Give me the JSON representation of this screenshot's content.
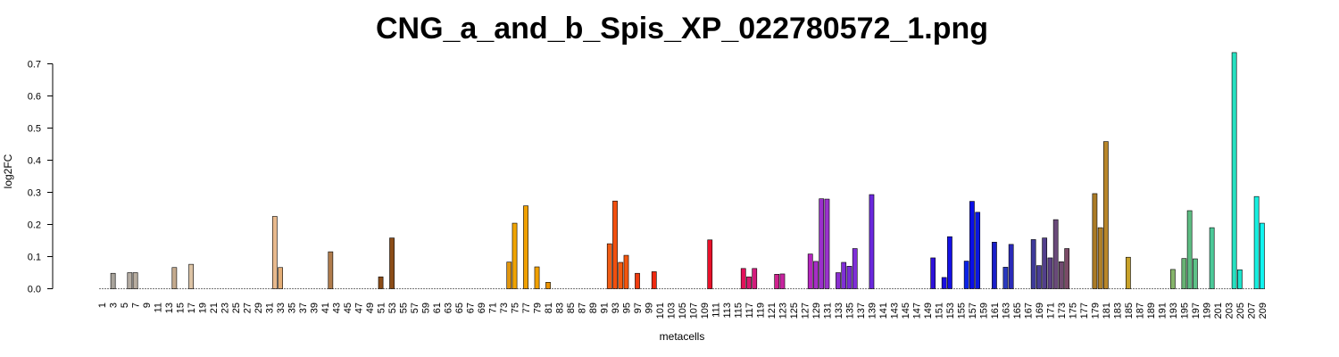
{
  "chart_data": {
    "type": "bar",
    "title": "CNG_a_and_b_Spis_XP_022780572_1.png",
    "xlabel": "metacells",
    "ylabel": "log2FC",
    "ylim": [
      0,
      0.7
    ],
    "yticks": [
      "0.0",
      "0.1",
      "0.2",
      "0.3",
      "0.4",
      "0.5",
      "0.6",
      "0.7"
    ],
    "n_categories": 209,
    "xtick_labels": [
      "1",
      "3",
      "5",
      "7",
      "9",
      "11",
      "13",
      "15",
      "17",
      "19",
      "21",
      "23",
      "25",
      "27",
      "29",
      "31",
      "33",
      "35",
      "37",
      "39",
      "41",
      "43",
      "45",
      "47",
      "49",
      "51",
      "53",
      "55",
      "57",
      "59",
      "61",
      "63",
      "65",
      "67",
      "69",
      "71",
      "73",
      "75",
      "77",
      "79",
      "81",
      "83",
      "85",
      "87",
      "89",
      "91",
      "93",
      "95",
      "97",
      "99",
      "101",
      "103",
      "105",
      "107",
      "109",
      "111",
      "113",
      "115",
      "117",
      "119",
      "121",
      "123",
      "125",
      "127",
      "129",
      "131",
      "133",
      "135",
      "137",
      "139",
      "141",
      "143",
      "145",
      "147",
      "149",
      "151",
      "153",
      "155",
      "157",
      "159",
      "161",
      "163",
      "165",
      "167",
      "169",
      "171",
      "173",
      "175",
      "177",
      "179",
      "181",
      "183",
      "185",
      "187",
      "189",
      "191",
      "193",
      "195",
      "197",
      "199",
      "201",
      "203",
      "205",
      "207",
      "209"
    ],
    "bars": [
      {
        "x": 3,
        "value": 0.048,
        "color": "#a8a39b"
      },
      {
        "x": 6,
        "value": 0.05,
        "color": "#b5ada3"
      },
      {
        "x": 7,
        "value": 0.05,
        "color": "#b8ada0"
      },
      {
        "x": 14,
        "value": 0.066,
        "color": "#c4aa8e"
      },
      {
        "x": 17,
        "value": 0.076,
        "color": "#dcc3a5"
      },
      {
        "x": 32,
        "value": 0.225,
        "color": "#e8b98d"
      },
      {
        "x": 33,
        "value": 0.066,
        "color": "#e3ad76"
      },
      {
        "x": 42,
        "value": 0.115,
        "color": "#b07c4c"
      },
      {
        "x": 51,
        "value": 0.037,
        "color": "#8b4c17"
      },
      {
        "x": 53,
        "value": 0.158,
        "color": "#8b4c17"
      },
      {
        "x": 74,
        "value": 0.083,
        "color": "#e0950e"
      },
      {
        "x": 75,
        "value": 0.204,
        "color": "#f0a400"
      },
      {
        "x": 77,
        "value": 0.258,
        "color": "#f0a000"
      },
      {
        "x": 79,
        "value": 0.068,
        "color": "#f0a000"
      },
      {
        "x": 81,
        "value": 0.02,
        "color": "#eb9200"
      },
      {
        "x": 92,
        "value": 0.14,
        "color": "#f25c14"
      },
      {
        "x": 93,
        "value": 0.273,
        "color": "#f24f0e"
      },
      {
        "x": 94,
        "value": 0.082,
        "color": "#f45a0e"
      },
      {
        "x": 95,
        "value": 0.104,
        "color": "#f2560e"
      },
      {
        "x": 97,
        "value": 0.048,
        "color": "#f03c0f"
      },
      {
        "x": 100,
        "value": 0.053,
        "color": "#ee2a10"
      },
      {
        "x": 110,
        "value": 0.152,
        "color": "#e8102a"
      },
      {
        "x": 116,
        "value": 0.063,
        "color": "#e3115a"
      },
      {
        "x": 117,
        "value": 0.037,
        "color": "#d7186e"
      },
      {
        "x": 118,
        "value": 0.063,
        "color": "#d41c7c"
      },
      {
        "x": 122,
        "value": 0.045,
        "color": "#cf238e"
      },
      {
        "x": 123,
        "value": 0.046,
        "color": "#c824a0"
      },
      {
        "x": 128,
        "value": 0.108,
        "color": "#b526be"
      },
      {
        "x": 129,
        "value": 0.085,
        "color": "#a72dc6"
      },
      {
        "x": 130,
        "value": 0.28,
        "color": "#9b30cc"
      },
      {
        "x": 131,
        "value": 0.279,
        "color": "#9a32cd"
      },
      {
        "x": 133,
        "value": 0.05,
        "color": "#8a2fd0"
      },
      {
        "x": 134,
        "value": 0.082,
        "color": "#8030d6"
      },
      {
        "x": 135,
        "value": 0.07,
        "color": "#7a2ed8"
      },
      {
        "x": 136,
        "value": 0.125,
        "color": "#7f2fd8"
      },
      {
        "x": 139,
        "value": 0.293,
        "color": "#6a28dc"
      },
      {
        "x": 150,
        "value": 0.096,
        "color": "#2d10d8"
      },
      {
        "x": 152,
        "value": 0.035,
        "color": "#1a0fe0"
      },
      {
        "x": 153,
        "value": 0.162,
        "color": "#1410e4"
      },
      {
        "x": 156,
        "value": 0.086,
        "color": "#0a22e6"
      },
      {
        "x": 157,
        "value": 0.272,
        "color": "#0a0fe8"
      },
      {
        "x": 158,
        "value": 0.238,
        "color": "#0a18e0"
      },
      {
        "x": 161,
        "value": 0.145,
        "color": "#1a1fc8"
      },
      {
        "x": 163,
        "value": 0.067,
        "color": "#2a3ac0"
      },
      {
        "x": 164,
        "value": 0.138,
        "color": "#2a2ab8"
      },
      {
        "x": 168,
        "value": 0.153,
        "color": "#3e3a9a"
      },
      {
        "x": 169,
        "value": 0.072,
        "color": "#4a3e94"
      },
      {
        "x": 170,
        "value": 0.158,
        "color": "#523f8c"
      },
      {
        "x": 171,
        "value": 0.096,
        "color": "#5c4084"
      },
      {
        "x": 172,
        "value": 0.215,
        "color": "#6a4a7a"
      },
      {
        "x": 173,
        "value": 0.084,
        "color": "#704a70"
      },
      {
        "x": 174,
        "value": 0.125,
        "color": "#7a4a66"
      },
      {
        "x": 179,
        "value": 0.296,
        "color": "#a97a26"
      },
      {
        "x": 180,
        "value": 0.19,
        "color": "#b08028"
      },
      {
        "x": 181,
        "value": 0.458,
        "color": "#b8862a"
      },
      {
        "x": 185,
        "value": 0.098,
        "color": "#c8a22a"
      },
      {
        "x": 193,
        "value": 0.06,
        "color": "#86b46a"
      },
      {
        "x": 195,
        "value": 0.094,
        "color": "#68b274"
      },
      {
        "x": 196,
        "value": 0.243,
        "color": "#5dbc82"
      },
      {
        "x": 197,
        "value": 0.093,
        "color": "#5ec288"
      },
      {
        "x": 200,
        "value": 0.19,
        "color": "#4cc898"
      },
      {
        "x": 204,
        "value": 0.735,
        "color": "#26e0c0"
      },
      {
        "x": 205,
        "value": 0.059,
        "color": "#1ae4cc"
      },
      {
        "x": 208,
        "value": 0.287,
        "color": "#18f0e0"
      },
      {
        "x": 209,
        "value": 0.204,
        "color": "#10f4f0"
      }
    ]
  }
}
